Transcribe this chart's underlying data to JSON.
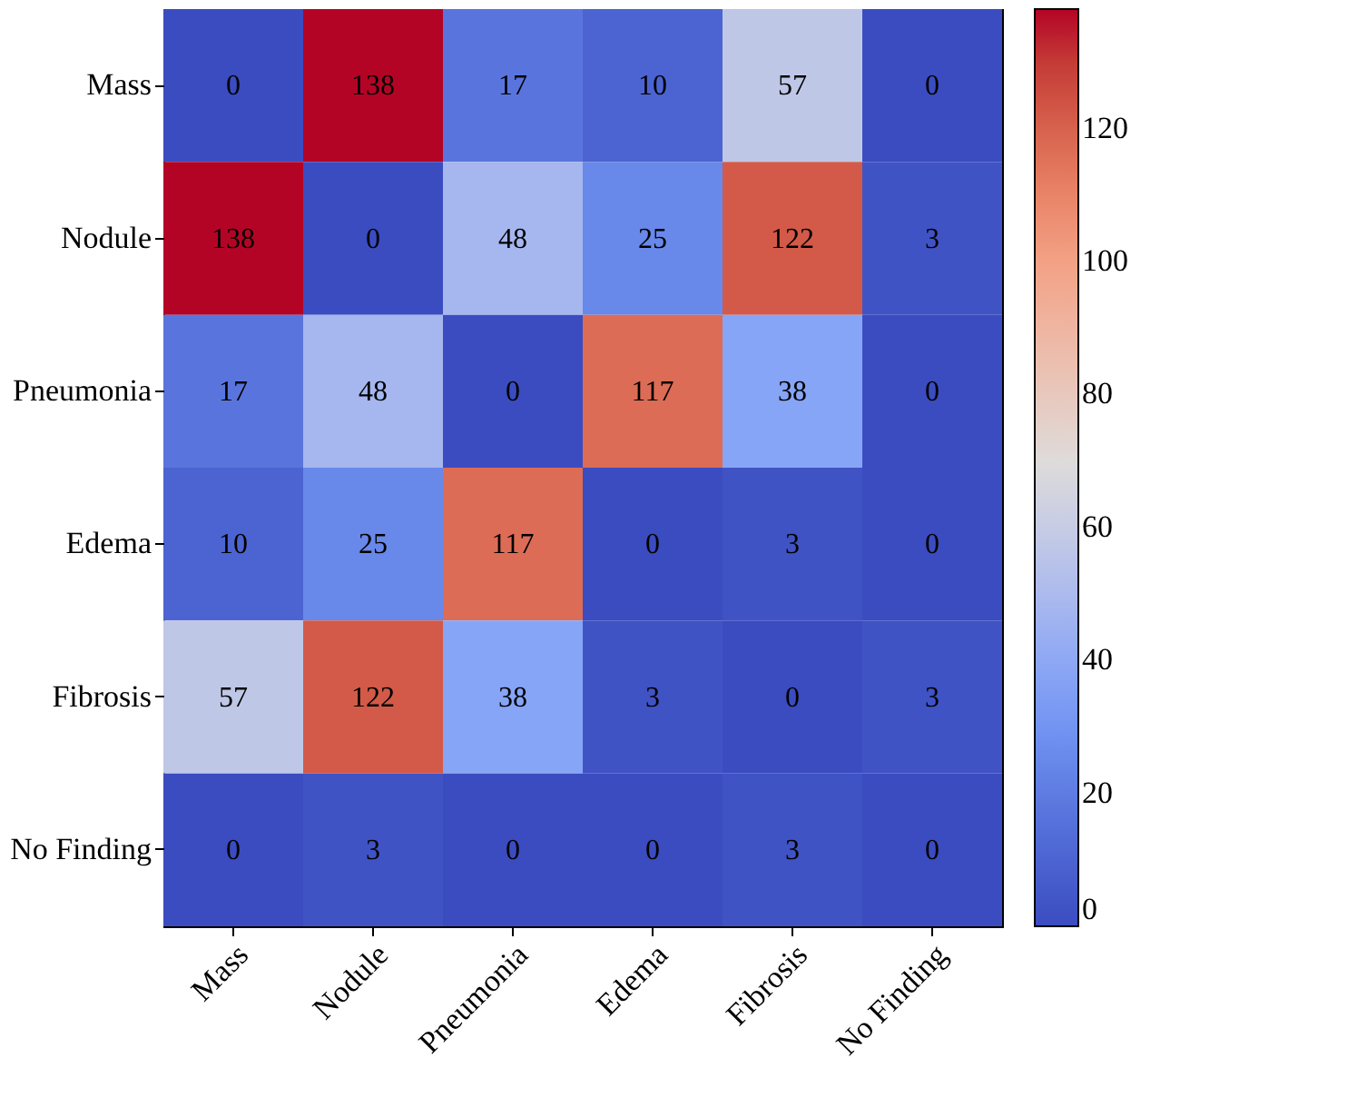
{
  "chart_data": {
    "type": "heatmap",
    "categories": [
      "Mass",
      "Nodule",
      "Pneumonia",
      "Edema",
      "Fibrosis",
      "No Finding"
    ],
    "y_categories": [
      "Mass",
      "Nodule",
      "Pneumonia",
      "Edema",
      "Fibrosis",
      "No Finding"
    ],
    "cells": [
      [
        0,
        138,
        17,
        10,
        57,
        0
      ],
      [
        138,
        0,
        48,
        25,
        122,
        3
      ],
      [
        17,
        48,
        0,
        117,
        38,
        0
      ],
      [
        10,
        25,
        117,
        0,
        3,
        0
      ],
      [
        57,
        122,
        38,
        3,
        0,
        3
      ],
      [
        0,
        3,
        0,
        0,
        3,
        0
      ]
    ],
    "data_labels": true,
    "clim": [
      0,
      138
    ],
    "cticks": [
      0,
      20,
      40,
      60,
      80,
      100,
      120
    ]
  }
}
